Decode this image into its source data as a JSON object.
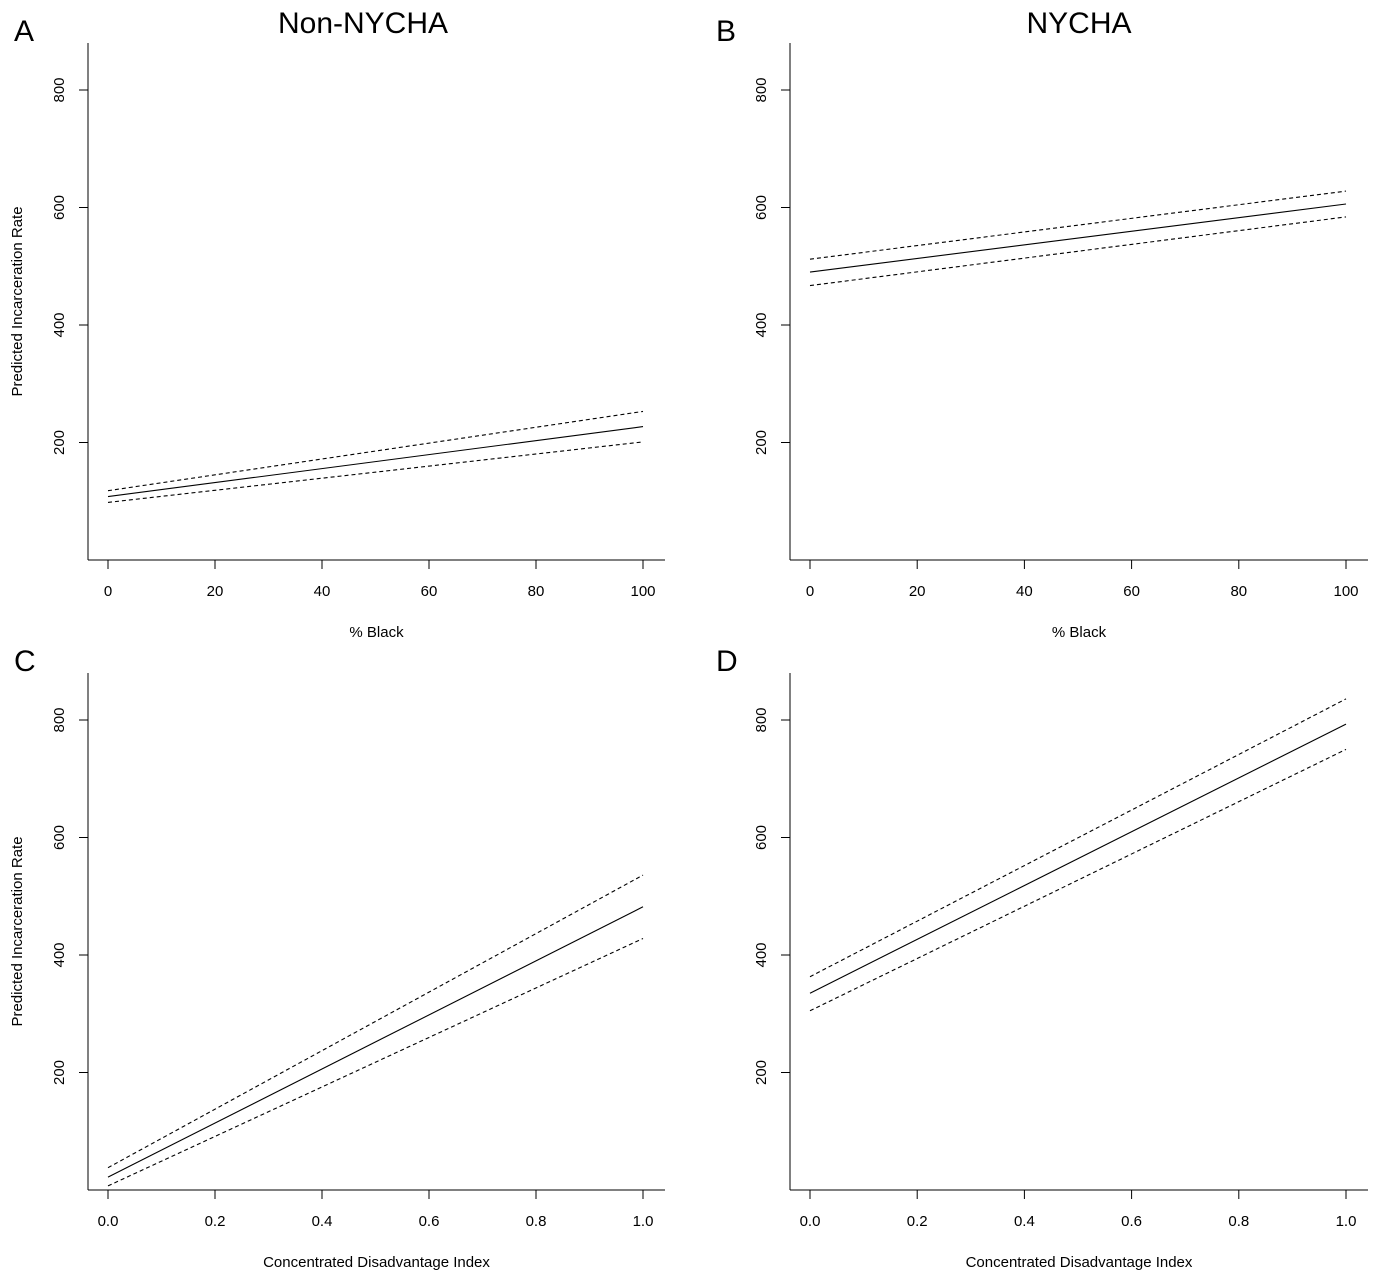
{
  "column_titles": [
    "Non-NYCHA",
    "NYCHA"
  ],
  "chart_data": [
    {
      "panel": "A",
      "type": "line",
      "xlabel": "% Black",
      "ylabel": "Predicted Incarceration Rate",
      "xlim": [
        0,
        100
      ],
      "ylim": [
        0,
        880
      ],
      "x_ticks": [
        "0",
        "20",
        "40",
        "60",
        "80",
        "100"
      ],
      "y_ticks": [
        "200",
        "400",
        "600",
        "800"
      ],
      "series": [
        {
          "style": "solid",
          "x": [
            0,
            100
          ],
          "y": [
            108,
            227
          ]
        },
        {
          "style": "dashed",
          "x": [
            0,
            100
          ],
          "y": [
            118,
            253
          ]
        },
        {
          "style": "dashed",
          "x": [
            0,
            100
          ],
          "y": [
            98,
            201
          ]
        }
      ]
    },
    {
      "panel": "B",
      "type": "line",
      "xlabel": "% Black",
      "ylabel": "",
      "xlim": [
        0,
        100
      ],
      "ylim": [
        0,
        880
      ],
      "x_ticks": [
        "0",
        "20",
        "40",
        "60",
        "80",
        "100"
      ],
      "y_ticks": [
        "200",
        "400",
        "600",
        "800"
      ],
      "series": [
        {
          "style": "solid",
          "x": [
            0,
            100
          ],
          "y": [
            490,
            606
          ]
        },
        {
          "style": "dashed",
          "x": [
            0,
            100
          ],
          "y": [
            512,
            628
          ]
        },
        {
          "style": "dashed",
          "x": [
            0,
            100
          ],
          "y": [
            467,
            584
          ]
        }
      ]
    },
    {
      "panel": "C",
      "type": "line",
      "xlabel": "Concentrated Disadvantage Index",
      "ylabel": "Predicted Incarceration Rate",
      "xlim": [
        0,
        1
      ],
      "ylim": [
        0,
        880
      ],
      "x_ticks": [
        "0.0",
        "0.2",
        "0.4",
        "0.6",
        "0.8",
        "1.0"
      ],
      "y_ticks": [
        "200",
        "400",
        "600",
        "800"
      ],
      "series": [
        {
          "style": "solid",
          "x": [
            0,
            1
          ],
          "y": [
            22,
            482
          ]
        },
        {
          "style": "dashed",
          "x": [
            0,
            1
          ],
          "y": [
            38,
            536
          ]
        },
        {
          "style": "dashed",
          "x": [
            0,
            1
          ],
          "y": [
            7,
            428
          ]
        }
      ]
    },
    {
      "panel": "D",
      "type": "line",
      "xlabel": "Concentrated Disadvantage Index",
      "ylabel": "",
      "xlim": [
        0,
        1
      ],
      "ylim": [
        0,
        880
      ],
      "x_ticks": [
        "0.0",
        "0.2",
        "0.4",
        "0.6",
        "0.8",
        "1.0"
      ],
      "y_ticks": [
        "200",
        "400",
        "600",
        "800"
      ],
      "series": [
        {
          "style": "solid",
          "x": [
            0,
            1
          ],
          "y": [
            335,
            793
          ]
        },
        {
          "style": "dashed",
          "x": [
            0,
            1
          ],
          "y": [
            363,
            836
          ]
        },
        {
          "style": "dashed",
          "x": [
            0,
            1
          ],
          "y": [
            305,
            750
          ]
        }
      ]
    }
  ]
}
